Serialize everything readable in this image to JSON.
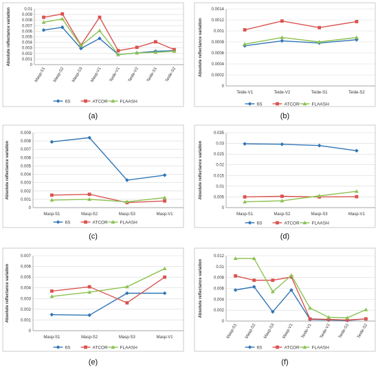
{
  "colors": {
    "6S": "#2e74b5",
    "ATCOR": "#d9534f",
    "FLAASH": "#8cc152"
  },
  "chart_data": [
    {
      "id": "a",
      "label": "(a)",
      "type": "line",
      "ylabel": "Absolute reflectance variation",
      "ylim": [
        0,
        0.01
      ],
      "yticks": [
        "0",
        "0.001",
        "0.002",
        "0.003",
        "0.004",
        "0.005",
        "0.006",
        "0.007",
        "0.008",
        "0.009",
        "0.01"
      ],
      "categories": [
        "Masp-S1",
        "Masp-S2",
        "Masp-S3",
        "Masp-V1",
        "Teide-V1",
        "Teide-V2",
        "Teide-S1",
        "Teide-S2"
      ],
      "rotated": true,
      "series": [
        {
          "name": "6S",
          "values": [
            0.0062,
            0.0067,
            0.0029,
            0.0047,
            0.0018,
            0.0021,
            0.0024,
            0.0025
          ]
        },
        {
          "name": "ATCOR",
          "values": [
            0.0085,
            0.0091,
            0.0035,
            0.0085,
            0.0025,
            0.0031,
            0.0041,
            0.0027
          ]
        },
        {
          "name": "FLAASH",
          "values": [
            0.0076,
            0.0082,
            0.0034,
            0.0061,
            0.0018,
            0.0021,
            0.0022,
            0.0024
          ]
        }
      ]
    },
    {
      "id": "b",
      "label": "(b)",
      "type": "line",
      "ylabel": "Absolute reflectance variation",
      "ylim": [
        0,
        0.0014
      ],
      "yticks": [
        "0",
        "0.0002",
        "0.0004",
        "0.0006",
        "0.0008",
        "0.001",
        "0.0012",
        "0.0014"
      ],
      "categories": [
        "Teide-V1",
        "Teide-V2",
        "Teide-S1",
        "Teide-S2"
      ],
      "rotated": false,
      "series": [
        {
          "name": "6S",
          "values": [
            0.00073,
            0.00082,
            0.00078,
            0.00084
          ]
        },
        {
          "name": "ATCOR",
          "values": [
            0.00102,
            0.00118,
            0.00106,
            0.00117
          ]
        },
        {
          "name": "FLAASH",
          "values": [
            0.00076,
            0.00088,
            0.0008,
            0.00088
          ]
        }
      ]
    },
    {
      "id": "c",
      "label": "(c)",
      "type": "line",
      "ylabel": "Absolute reflectance variation",
      "ylim": [
        0,
        0.009
      ],
      "yticks": [
        "0",
        "0.001",
        "0.002",
        "0.003",
        "0.004",
        "0.005",
        "0.006",
        "0.007",
        "0.008",
        "0.009"
      ],
      "categories": [
        "Masp-S1",
        "Masp-S2",
        "Masp-S3",
        "Masp-V1"
      ],
      "rotated": false,
      "series": [
        {
          "name": "6S",
          "values": [
            0.0079,
            0.0084,
            0.0033,
            0.0039
          ]
        },
        {
          "name": "ATCOR",
          "values": [
            0.0015,
            0.0016,
            0.0006,
            0.0008
          ]
        },
        {
          "name": "FLAASH",
          "values": [
            0.0009,
            0.001,
            0.0007,
            0.0012
          ]
        }
      ]
    },
    {
      "id": "d",
      "label": "(d)",
      "type": "line",
      "ylabel": "Absolute reflectance variation",
      "ylim": [
        0,
        0.035
      ],
      "yticks": [
        "0",
        "0.005",
        "0.01",
        "0.015",
        "0.02",
        "0.025",
        "0.03",
        "0.035"
      ],
      "categories": [
        "Masp-S1",
        "Masp-S2",
        "Masp-S3",
        "Masp-V1"
      ],
      "rotated": false,
      "series": [
        {
          "name": "6S",
          "values": [
            0.0298,
            0.0296,
            0.029,
            0.0266
          ]
        },
        {
          "name": "ATCOR",
          "values": [
            0.005,
            0.0053,
            0.005,
            0.0051
          ]
        },
        {
          "name": "FLAASH",
          "values": [
            0.0027,
            0.0032,
            0.0055,
            0.0076
          ]
        }
      ]
    },
    {
      "id": "e",
      "label": "(e)",
      "type": "line",
      "ylabel": "Absolute reflectance variation",
      "ylim": [
        0,
        0.007
      ],
      "yticks": [
        "0",
        "0.001",
        "0.002",
        "0.003",
        "0.004",
        "0.005",
        "0.006",
        "0.007"
      ],
      "categories": [
        "Masp-S1",
        "Masp-S2",
        "Masp-S3",
        "Masp-V1"
      ],
      "rotated": false,
      "series": [
        {
          "name": "6S",
          "values": [
            0.0015,
            0.00145,
            0.0035,
            0.0035
          ]
        },
        {
          "name": "ATCOR",
          "values": [
            0.0037,
            0.0041,
            0.0026,
            0.005
          ]
        },
        {
          "name": "FLAASH",
          "values": [
            0.0032,
            0.0036,
            0.0041,
            0.0058
          ]
        }
      ]
    },
    {
      "id": "f",
      "label": "(f)",
      "type": "line",
      "ylabel": "Absolute reflectance variation",
      "ylim": [
        0,
        0.012
      ],
      "yticks": [
        "0",
        "0.002",
        "0.004",
        "0.006",
        "0.008",
        "0.01",
        "0.012"
      ],
      "categories": [
        "Masp-S1",
        "Masp-S2",
        "Masp-S3",
        "Masp-V1",
        "Teide-V1",
        "Teide-V2",
        "Teide-S1",
        "Teide-S2"
      ],
      "rotated": true,
      "series": [
        {
          "name": "6S",
          "values": [
            0.0057,
            0.0063,
            0.0017,
            0.0057,
            0.0003,
            0.0002,
            0.0001,
            0.0004
          ]
        },
        {
          "name": "ATCOR",
          "values": [
            0.0083,
            0.0075,
            0.0075,
            0.0081,
            0.0004,
            0.0003,
            0.0002,
            0.0004
          ]
        },
        {
          "name": "FLAASH",
          "values": [
            0.0115,
            0.0115,
            0.0054,
            0.0084,
            0.0024,
            0.0007,
            0.0006,
            0.0021
          ]
        }
      ]
    }
  ]
}
